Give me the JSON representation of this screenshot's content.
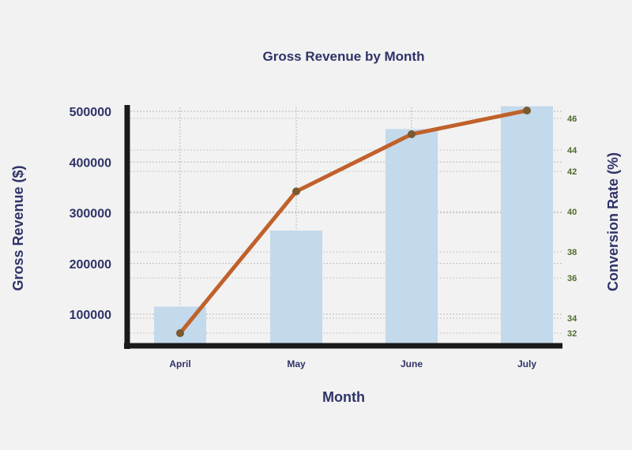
{
  "chart_data": {
    "type": "bar",
    "title": "Gross Revenue by Month",
    "xlabel": "Month",
    "ylabel": "Gross Revenue ($)",
    "y2label": "Conversion Rate (%)",
    "categories": [
      "April",
      "May",
      "June",
      "July"
    ],
    "series": [
      {
        "type": "bar",
        "axis": "left",
        "values": [
          115000,
          265000,
          465000,
          510000
        ],
        "color": "#c3d9ec"
      },
      {
        "type": "line",
        "axis": "right",
        "values": [
          32,
          41,
          45,
          46.5
        ],
        "color": "#c0612b",
        "marker_color": "#7a5a2e"
      }
    ],
    "ylim": [
      45000,
      510000
    ],
    "y_ticks": [
      100000,
      200000,
      300000,
      400000,
      500000
    ],
    "y_tick_labels": [
      "100000",
      "200000",
      "300000",
      "400000",
      "500000"
    ],
    "y2_ticks": [
      32,
      34,
      36,
      38,
      40,
      42,
      44,
      46
    ],
    "y2_tick_labels": [
      "32",
      "34",
      "36",
      "38",
      "40",
      "42",
      "44",
      "46"
    ],
    "y2_tick_color": "#4f6b2b",
    "text_color": "#2f3368",
    "axis_color": "#1a1a1a",
    "grid": true
  }
}
